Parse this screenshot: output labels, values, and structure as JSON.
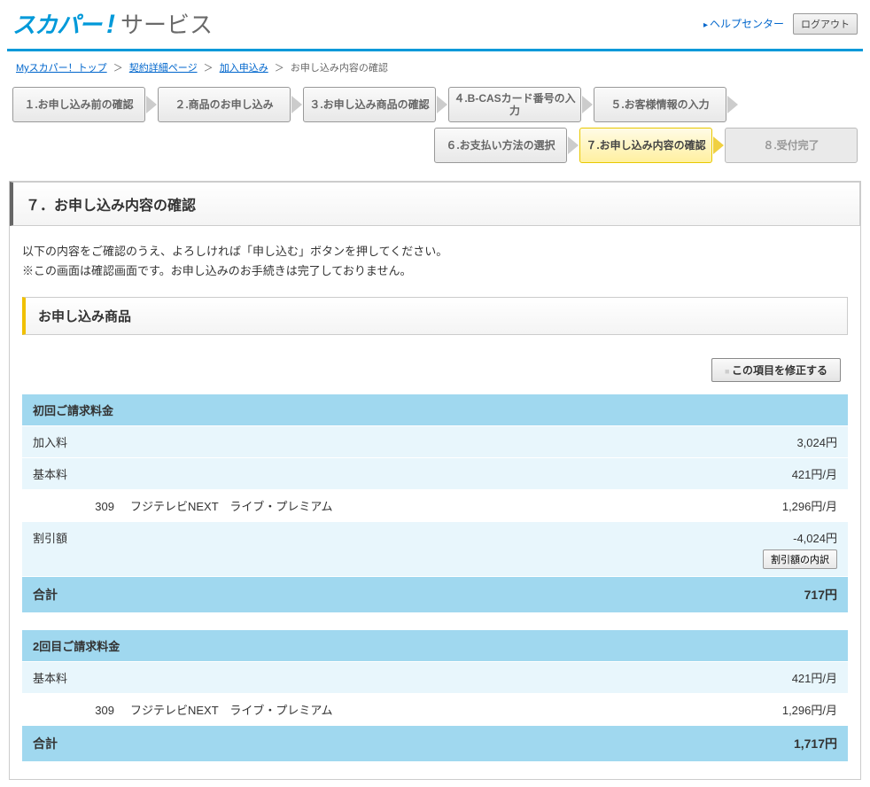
{
  "header": {
    "logo_main": "スカパー",
    "logo_ex": "!",
    "logo_sub": "サービス",
    "help_link": "ヘルプセンター",
    "logout": "ログアウト"
  },
  "colors": {
    "brand": "#0099d9",
    "step_active_bg": "#fff0a0",
    "table_header": "#a0d8ef",
    "table_light": "#e8f6fc",
    "accent_border": "#f0c000"
  },
  "breadcrumb": {
    "items": [
      {
        "label": "Myスカパー！トップ",
        "link": true
      },
      {
        "label": "契約詳細ページ",
        "link": true
      },
      {
        "label": "加入申込み",
        "link": true
      },
      {
        "label": "お申し込み内容の確認",
        "link": false
      }
    ]
  },
  "steps": {
    "row1": [
      "１.お申し込み前の確認",
      "２.商品のお申し込み",
      "３.お申し込み商品の確認",
      "４.B-CASカード番号の入力",
      "５.お客様情報の入力"
    ],
    "row2": [
      {
        "label": "６.お支払い方法の選択",
        "state": "normal"
      },
      {
        "label": "７.お申し込み内容の確認",
        "state": "active"
      },
      {
        "label": "８.受付完了",
        "state": "final"
      }
    ]
  },
  "section": {
    "title": "７．お申し込み内容の確認",
    "intro_line1": "以下の内容をご確認のうえ、よろしければ「申し込む」ボタンを押してください。",
    "intro_line2": "※この画面は確認画面です。お申し込みのお手続きは完了しておりません。",
    "sub_title": "お申し込み商品",
    "edit_button": "この項目を修正する"
  },
  "billing1": {
    "header": "初回ご請求料金",
    "rows": [
      {
        "label": "加入料",
        "value": "3,024円",
        "bg": "light"
      },
      {
        "label": "基本料",
        "value": "421円/月",
        "bg": "light"
      },
      {
        "ch": "309",
        "label": "フジテレビNEXT　ライブ・プレミアム",
        "value": "1,296円/月",
        "bg": "white",
        "indent": true
      },
      {
        "label": "割引額",
        "value": "-4,024円",
        "bg": "light",
        "detail_btn": "割引額の内訳"
      }
    ],
    "total_label": "合計",
    "total_value": "717円"
  },
  "billing2": {
    "header": "2回目ご請求料金",
    "rows": [
      {
        "label": "基本料",
        "value": "421円/月",
        "bg": "light"
      },
      {
        "ch": "309",
        "label": "フジテレビNEXT　ライブ・プレミアム",
        "value": "1,296円/月",
        "bg": "white",
        "indent": true
      }
    ],
    "total_label": "合計",
    "total_value": "1,717円"
  }
}
